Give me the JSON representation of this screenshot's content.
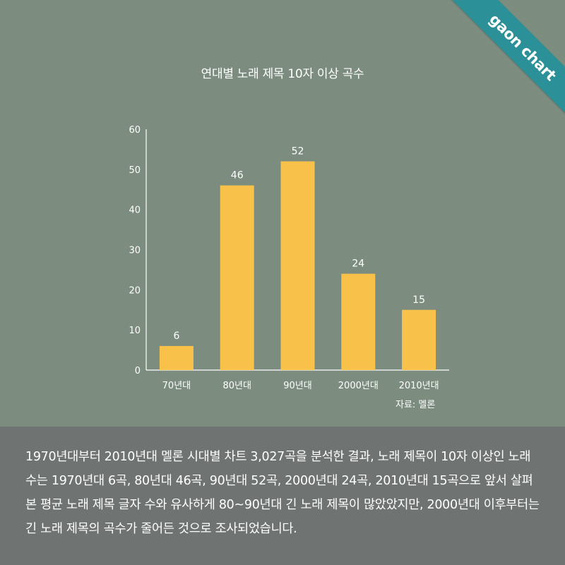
{
  "brand": {
    "ribbon_label": "gaon chart"
  },
  "chart_data": {
    "type": "bar",
    "title": "연대별 노래 제목 10자 이상 곡수",
    "categories": [
      "70년대",
      "80년대",
      "90년대",
      "2000년대",
      "2010년대"
    ],
    "values": [
      6,
      46,
      52,
      24,
      15
    ],
    "value_labels": [
      "6",
      "46",
      "52",
      "24",
      "15"
    ],
    "yticks": [
      "0",
      "10",
      "20",
      "30",
      "40",
      "50",
      "60"
    ],
    "ylim": [
      0,
      60
    ],
    "xlabel": "",
    "ylabel": "",
    "grid": false,
    "source": "자료: 멜론"
  },
  "colors": {
    "bar": "#f8c14a",
    "background": "#7c8d80",
    "panel": "#6f7371",
    "ribbon": "#2b9097",
    "text": "#ffffff"
  },
  "description": "1970년대부터 2010년대 멜론 시대별 차트 3,027곡을 분석한 결과, 노래 제목이 10자 이상인 노래 수는 1970년대 6곡, 80년대 46곡, 90년대 52곡, 2000년대 24곡, 2010년대 15곡으로 앞서 살펴본 평균 노래 제목 글자 수와 유사하게 80~90년대 긴 노래 제목이 많았았지만, 2000년대 이후부터는 긴 노래 제목의 곡수가 줄어든 것으로 조사되었습니다."
}
